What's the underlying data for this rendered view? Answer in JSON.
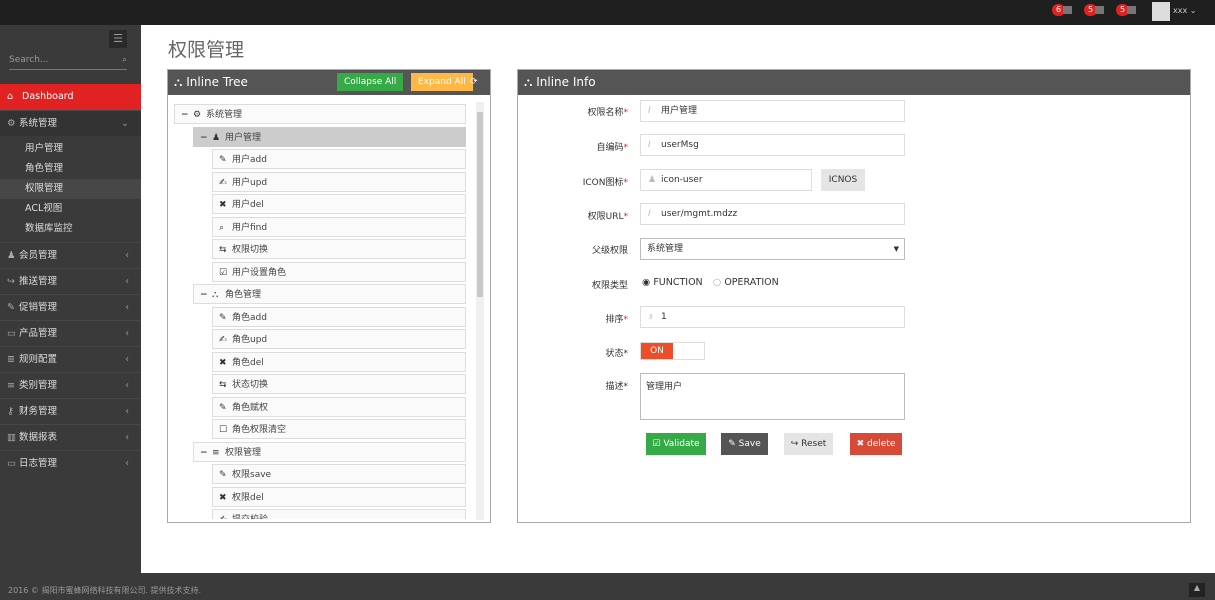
{
  "topbar": {
    "badges": [
      {
        "count": "6",
        "icon": "bell-icon"
      },
      {
        "count": "5",
        "icon": "envelope-icon"
      },
      {
        "count": "5",
        "icon": "tasks-icon"
      }
    ],
    "user": "xxx"
  },
  "sidebar": {
    "search_placeholder": "Search...",
    "items": [
      {
        "label": "Dashboard",
        "icon": "home-icon",
        "active": true
      },
      {
        "label": "系统管理",
        "icon": "cogs-icon",
        "open": true,
        "children": [
          "用户管理",
          "角色管理",
          "权限管理",
          "ACL视图",
          "数据库监控"
        ]
      },
      {
        "label": "会员管理",
        "icon": "user-icon"
      },
      {
        "label": "推送管理",
        "icon": "share-icon"
      },
      {
        "label": "促销管理",
        "icon": "pencil-icon"
      },
      {
        "label": "产品管理",
        "icon": "folder-icon"
      },
      {
        "label": "规则配置",
        "icon": "list-icon"
      },
      {
        "label": "类别管理",
        "icon": "list-icon"
      },
      {
        "label": "财务管理",
        "icon": "key-icon"
      },
      {
        "label": "数据报表",
        "icon": "chart-icon"
      },
      {
        "label": "日志管理",
        "icon": "credit-card-icon"
      }
    ]
  },
  "page": {
    "title": "权限管理"
  },
  "tree_panel": {
    "title": "Inline Tree",
    "collapse": "Collapse All",
    "expand": "Expand All",
    "nodes": [
      {
        "label": "系统管理",
        "level": 0,
        "icon": "cogs-icon",
        "toggle": "−"
      },
      {
        "label": "用户管理",
        "level": 1,
        "icon": "user-icon",
        "toggle": "−",
        "selected": true
      },
      {
        "label": "用户add",
        "level": 2,
        "icon": "pencil-icon"
      },
      {
        "label": "用户upd",
        "level": 2,
        "icon": "edit-icon"
      },
      {
        "label": "用户del",
        "level": 2,
        "icon": "remove-icon"
      },
      {
        "label": "用户find",
        "level": 2,
        "icon": "search-icon"
      },
      {
        "label": "权限切换",
        "level": 2,
        "icon": "retweet-icon"
      },
      {
        "label": "用户设置角色",
        "level": 2,
        "icon": "check-icon"
      },
      {
        "label": "角色管理",
        "level": 1,
        "icon": "sitemap-icon",
        "toggle": "−"
      },
      {
        "label": "角色add",
        "level": 2,
        "icon": "pencil-icon"
      },
      {
        "label": "角色upd",
        "level": 2,
        "icon": "edit-icon"
      },
      {
        "label": "角色del",
        "level": 2,
        "icon": "remove-icon"
      },
      {
        "label": "状态切换",
        "level": 2,
        "icon": "retweet-icon"
      },
      {
        "label": "角色赋权",
        "level": 2,
        "icon": "pencil-icon"
      },
      {
        "label": "角色权限清空",
        "level": 2,
        "icon": "square-icon"
      },
      {
        "label": "权限管理",
        "level": 1,
        "icon": "list-icon",
        "toggle": "−"
      },
      {
        "label": "权限save",
        "level": 2,
        "icon": "pencil-icon"
      },
      {
        "label": "权限del",
        "level": 2,
        "icon": "remove-icon"
      },
      {
        "label": "提交校验",
        "level": 2,
        "icon": "edit-icon"
      }
    ]
  },
  "info_panel": {
    "title": "Inline Info",
    "fields": {
      "name_label": "权限名称",
      "name": "用户管理",
      "code_label": "自编码",
      "code": "userMsg",
      "icon_label": "ICON图标",
      "icon": "icon-user",
      "icnos": "ICNOS",
      "url_label": "权限URL",
      "url": "user/mgmt.mdzz",
      "parent_label": "父级权限",
      "parent": "系统管理",
      "type_label": "权限类型",
      "type_options": [
        "FUNCTION",
        "OPERATION"
      ],
      "type_selected": "FUNCTION",
      "order_label": "排序",
      "order": "1",
      "status_label": "状态",
      "status": "ON",
      "desc_label": "描述",
      "desc": "管理用户"
    },
    "buttons": {
      "validate": "Validate",
      "save": "Save",
      "reset": "Reset",
      "delete": "delete"
    }
  },
  "footer": {
    "text": "2016 © 揭阳市蜜蜂网络科技有限公司. 提供技术支持."
  }
}
